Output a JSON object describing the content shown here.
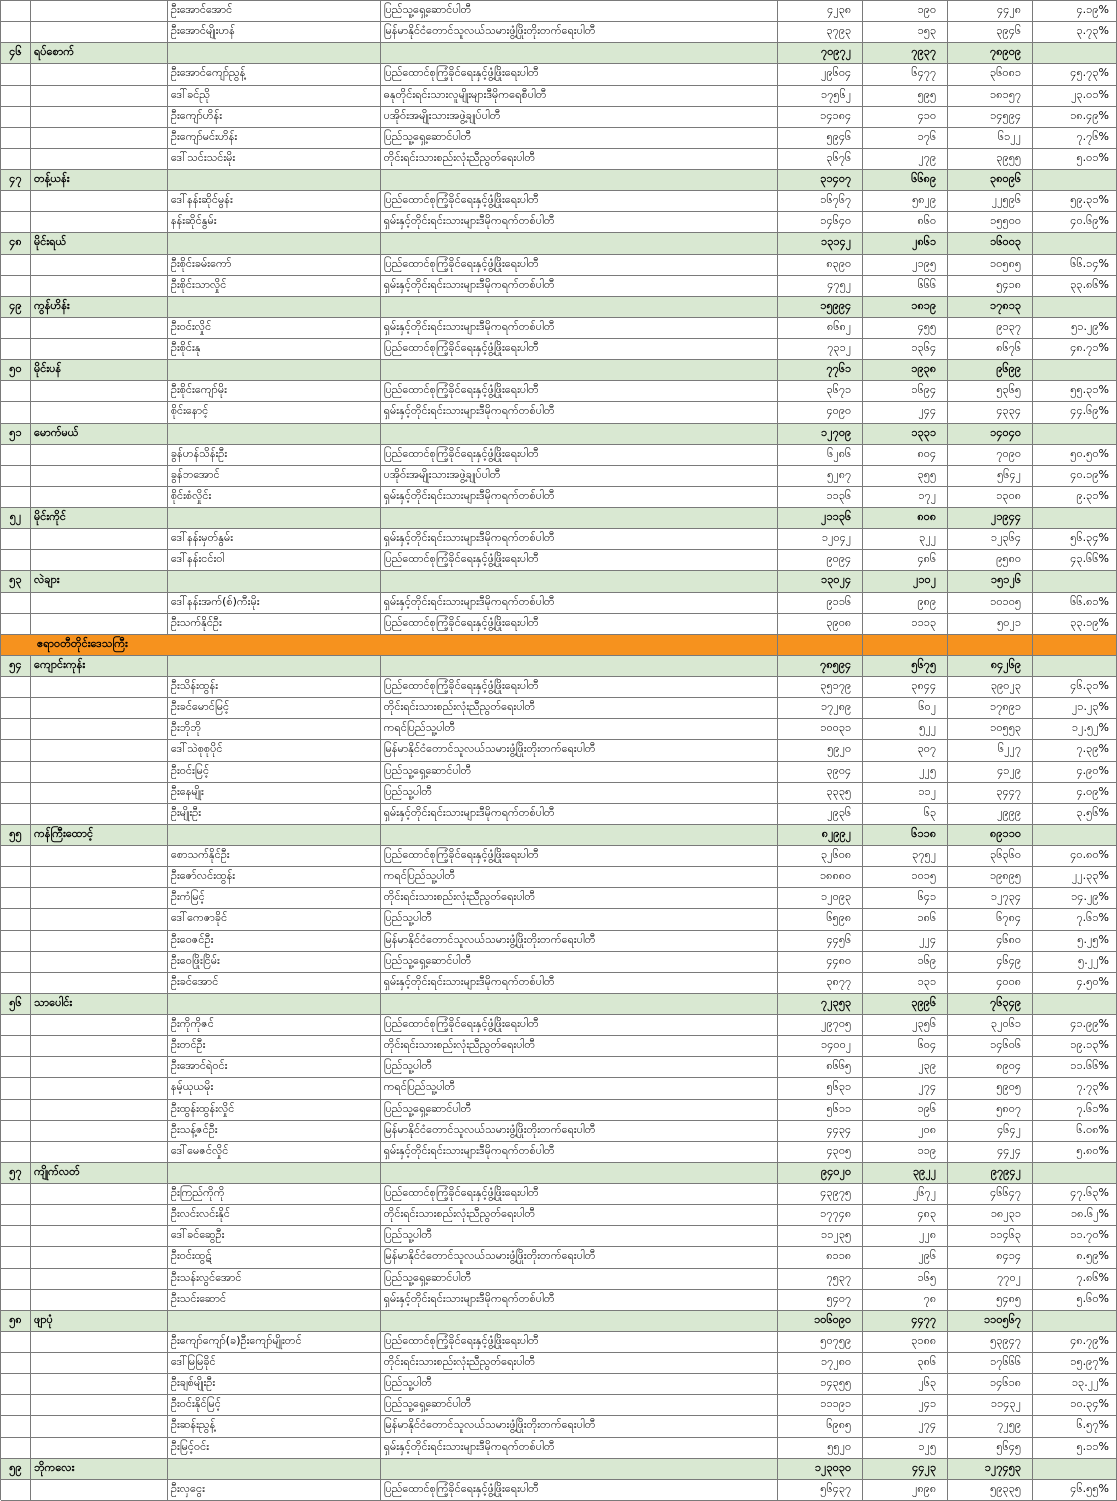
{
  "table": {
    "title": "Myanmar election results table (townships 46-59)",
    "region_header_color": "#f6921e",
    "township_row_color": "#d9e8d2",
    "columns": [
      "no",
      "township",
      "candidate",
      "party",
      "votes_ballot",
      "votes_advance",
      "votes_total",
      "percent"
    ],
    "rows": [
      {
        "type": "candidate",
        "candidate": "ဦးအောင်အောင်",
        "party": "ပြည်သူ့ရှေ့ဆောင်ပါတီ",
        "v1": "၄၂၃၈",
        "v2": "၁၉၀",
        "v3": "၄၄၂၈",
        "pct": "၄.၁၉%"
      },
      {
        "type": "candidate",
        "candidate": "ဦးအောင်မျိုးဟန်",
        "party": "မြန်မာနိုင်ငံတောင်သူလယ်သမားဖွံ့ဖြိုးတိုးတက်ရေးပါတီ",
        "v1": "၃၇၉၃",
        "v2": "၁၅၃",
        "v3": "၃၉၄၆",
        "pct": "၃.၇၃%"
      },
      {
        "type": "township",
        "no": "၄၆",
        "name": "ရပ်စောက်",
        "v1": "၇၀၉၇၂",
        "v2": "၇၉၃၇",
        "v3": "၇၈၉၀၉"
      },
      {
        "type": "candidate",
        "candidate": "ဦးအောင်ကျော်ညွန့်",
        "party": "ပြည်ထောင်စုကြံ့ခိုင်ရေးနှင့်ဖွံ့ဖြိုးရေးပါတီ",
        "v1": "၂၉၆၀၄",
        "v2": "၆၄၇၇",
        "v3": "၃၆၀၈၁",
        "pct": "၄၅.၇၃%"
      },
      {
        "type": "candidate",
        "candidate": "ဒေါ်ခင်ညို",
        "party": "ဓနုတိုင်းရင်းသားလူမျိုးများဒီမိုကရေစီပါတီ",
        "v1": "၁၇၅၆၂",
        "v2": "၅၉၅",
        "v3": "၁၈၁၅၇",
        "pct": "၂၃.၀၁%"
      },
      {
        "type": "candidate",
        "candidate": "ဦးကျော်ဟိန်း",
        "party": "ပအိုဝ်းအမျိုးသားအဖွဲ့ချုပ်ပါတီ",
        "v1": "၁၄၁၈၄",
        "v2": "၄၁၀",
        "v3": "၁၄၅၉၄",
        "pct": "၁၈.၄၉%"
      },
      {
        "type": "candidate",
        "candidate": "ဦးကျော်မင်းဟိန်း",
        "party": "ပြည်သူ့ရှေ့ဆောင်ပါတီ",
        "v1": "၅၉၄၆",
        "v2": "၁၇၆",
        "v3": "၆၁၂၂",
        "pct": "၇.၇၆%"
      },
      {
        "type": "candidate",
        "candidate": "ဒေါ်သင်းသင်းမိုး",
        "party": "တိုင်းရင်းသားစည်းလုံးညီညွတ်ရေးပါတီ",
        "v1": "၃၆၇၆",
        "v2": "၂၇၉",
        "v3": "၃၉၅၅",
        "pct": "၅.၀၁%"
      },
      {
        "type": "township",
        "no": "၄၇",
        "name": "တန့်ယန်း",
        "v1": "၃၁၄၀၇",
        "v2": "၆၆၈၉",
        "v3": "၃၈၀၉၆"
      },
      {
        "type": "candidate",
        "candidate": "ဒေါ်နန်းဆိုင်မွန်း",
        "party": "ပြည်ထောင်စုကြံ့ခိုင်ရေးနှင့်ဖွံ့ဖြိုးရေးပါတီ",
        "v1": "၁၆၇၆၇",
        "v2": "၅၈၂၉",
        "v3": "၂၂၅၉၆",
        "pct": "၅၉.၃၁%"
      },
      {
        "type": "candidate",
        "candidate": "နန်းဆိုင်နွမ်း",
        "party": "ရှမ်းနှင့်တိုင်းရင်းသားများဒီမိုကရက်တစ်ပါတီ",
        "v1": "၁၄၆၄၀",
        "v2": "၈၆၀",
        "v3": "၁၅၅၀၀",
        "pct": "၄၀.၆၉%"
      },
      {
        "type": "township",
        "no": "၄၈",
        "name": "မိုင်းရယ်",
        "v1": "၁၃၁၄၂",
        "v2": "၂၈၆၁",
        "v3": "၁၆၀၀၃"
      },
      {
        "type": "candidate",
        "candidate": "ဦးစိုင်းခမ်းကော်",
        "party": "ပြည်ထောင်စုကြံ့ခိုင်ရေးနှင့်ဖွံ့ဖြိုးရေးပါတီ",
        "v1": "၈၃၉၀",
        "v2": "၂၁၉၅",
        "v3": "၁၀၅၈၅",
        "pct": "၆၆.၁၄%"
      },
      {
        "type": "candidate",
        "candidate": "ဦးစိုင်းသာလှိုင်",
        "party": "ရှမ်းနှင့်တိုင်းရင်းသားများဒီမိုကရက်တစ်ပါတီ",
        "v1": "၄၇၅၂",
        "v2": "၆၆၆",
        "v3": "၅၄၁၈",
        "pct": "၃၃.၈၆%"
      },
      {
        "type": "township",
        "no": "၄၉",
        "name": "ကွန်ဟိန်း",
        "v1": "၁၅၉၉၄",
        "v2": "၁၈၁၉",
        "v3": "၁၇၈၁၃"
      },
      {
        "type": "candidate",
        "candidate": "ဦးဝင်းလှိုင်",
        "party": "ရှမ်းနှင့်တိုင်းရင်းသားများဒီမိုကရက်တစ်ပါတီ",
        "v1": "၈၆၈၂",
        "v2": "၄၅၅",
        "v3": "၉၁၃၇",
        "pct": "၅၁.၂၉%"
      },
      {
        "type": "candidate",
        "candidate": "ဦးစိုင်းနု",
        "party": "ပြည်ထောင်စုကြံ့ခိုင်ရေးနှင့်ဖွံ့ဖြိုးရေးပါတီ",
        "v1": "၇၃၁၂",
        "v2": "၁၃၆၄",
        "v3": "၈၆၇၆",
        "pct": "၄၈.၇၁%"
      },
      {
        "type": "township",
        "no": "၅၀",
        "name": "မိုင်းပန်",
        "v1": "၇၇၆၁",
        "v2": "၁၉၃၈",
        "v3": "၉၆၉၉"
      },
      {
        "type": "candidate",
        "candidate": "ဦးစိုင်းကျော်မိုး",
        "party": "ပြည်ထောင်စုကြံ့ခိုင်ရေးနှင့်ဖွံ့ဖြိုးရေးပါတီ",
        "v1": "၃၆၇၁",
        "v2": "၁၆၉၄",
        "v3": "၅၃၆၅",
        "pct": "၅၅.၃၁%"
      },
      {
        "type": "candidate",
        "candidate": "စိုင်းနောင့်",
        "party": "ရှမ်းနှင့်တိုင်းရင်းသားများဒီမိုကရက်တစ်ပါတီ",
        "v1": "၄၀၉၀",
        "v2": "၂၄၄",
        "v3": "၄၃၃၄",
        "pct": "၄၄.၆၉%"
      },
      {
        "type": "township",
        "no": "၅၁",
        "name": "မောက်မယ်",
        "v1": "၁၂၇၀၉",
        "v2": "၁၃၃၁",
        "v3": "၁၄၀၄၀"
      },
      {
        "type": "candidate",
        "candidate": "ခွန်ဟန်သိန်းဦး",
        "party": "ပြည်ထောင်စုကြံ့ခိုင်ရေးနှင့်ဖွံ့ဖြိုးရေးပါတီ",
        "v1": "၆၂၈၆",
        "v2": "၈၀၄",
        "v3": "၇၀၉၀",
        "pct": "၅၀.၅၀%"
      },
      {
        "type": "candidate",
        "candidate": "ခွန်ဘအောင်",
        "party": "ပအိုဝ်းအမျိုးသားအဖွဲ့ချုပ်ပါတီ",
        "v1": "၅၂၈၇",
        "v2": "၃၅၅",
        "v3": "၅၆၄၂",
        "pct": "၄၀.၁၉%"
      },
      {
        "type": "candidate",
        "candidate": "စိုင်းစံလှိုင်း",
        "party": "ရှမ်းနှင့်တိုင်းရင်းသားများဒီမိုကရက်တစ်ပါတီ",
        "v1": "၁၁၃၆",
        "v2": "၁၇၂",
        "v3": "၁၃၀၈",
        "pct": "၉.၃၁%"
      },
      {
        "type": "township",
        "no": "၅၂",
        "name": "မိုင်းကိုင်",
        "v1": "၂၁၁၃၆",
        "v2": "၈၀၈",
        "v3": "၂၁၉၄၄"
      },
      {
        "type": "candidate",
        "candidate": "ဒေါ်နန်းမှတ်နွမ်း",
        "party": "ရှမ်းနှင့်တိုင်းရင်းသားများဒီမိုကရက်တစ်ပါတီ",
        "v1": "၁၂၀၄၂",
        "v2": "၃၂၂",
        "v3": "၁၂၃၆၄",
        "pct": "၅၆.၃၄%"
      },
      {
        "type": "candidate",
        "candidate": "ဒေါ်နန်းငင်းဝါ",
        "party": "ပြည်ထောင်စုကြံ့ခိုင်ရေးနှင့်ဖွံ့ဖြိုးရေးပါတီ",
        "v1": "၉၀၉၄",
        "v2": "၄၈၆",
        "v3": "၉၅၈၀",
        "pct": "၄၃.၆၆%"
      },
      {
        "type": "township",
        "no": "၅၃",
        "name": "လဲချား",
        "v1": "၁၃၀၂၄",
        "v2": "၂၁၀၂",
        "v3": "၁၅၁၂၆"
      },
      {
        "type": "candidate",
        "candidate": "ဒေါ်နန်းအက်(စ်)ကီးမိုး",
        "party": "ရှမ်းနှင့်တိုင်းရင်းသားများဒီမိုကရက်တစ်ပါတီ",
        "v1": "၉၁၁၆",
        "v2": "၉၈၉",
        "v3": "၁၀၁၀၅",
        "pct": "၆၆.၈၁%"
      },
      {
        "type": "candidate",
        "candidate": "ဦးသက်နိုင်ဦး",
        "party": "ပြည်ထောင်စုကြံ့ခိုင်ရေးနှင့်ဖွံ့ဖြိုးရေးပါတီ",
        "v1": "၃၉၀၈",
        "v2": "၁၁၁၃",
        "v3": "၅၀၂၁",
        "pct": "၃၃.၁၉%"
      },
      {
        "type": "region",
        "name": "ဧရာဝတီတိုင်းဒေသကြီး"
      },
      {
        "type": "township",
        "no": "၅၄",
        "name": "ကျောင်းကုန်း",
        "v1": "၇၈၅၉၄",
        "v2": "၅၆၇၅",
        "v3": "၈၄၂၆၉"
      },
      {
        "type": "candidate",
        "candidate": "ဦးသိန်းထွန်း",
        "party": "ပြည်ထောင်စုကြံ့ခိုင်ရေးနှင့်ဖွံ့ဖြိုးရေးပါတီ",
        "v1": "၃၅၁၇၉",
        "v2": "၃၈၄၄",
        "v3": "၃၉၀၂၃",
        "pct": "၄၆.၃၁%"
      },
      {
        "type": "candidate",
        "candidate": "ဦးခင်မောင်မြင့်",
        "party": "တိုင်းရင်းသားစည်းလုံးညီညွတ်ရေးပါတီ",
        "v1": "၁၇၂၈၉",
        "v2": "၆၀၂",
        "v3": "၁၇၈၉၁",
        "pct": "၂၁.၂၃%"
      },
      {
        "type": "candidate",
        "candidate": "ဦးဘိုဘို",
        "party": "ကရင်ပြည်သူ့ပါတီ",
        "v1": "၁၀၀၃၁",
        "v2": "၅၂၂",
        "v3": "၁၀၅၅၃",
        "pct": "၁၂.၅၂%"
      },
      {
        "type": "candidate",
        "candidate": "ဒေါ်သဲစုစုပိုင်",
        "party": "မြန်မာနိုင်ငံတောင်သူလယ်သမားဖွံ့ဖြိုးတိုးတက်ရေးပါတီ",
        "v1": "၅၉၂၀",
        "v2": "၃၀၇",
        "v3": "၆၂၂၇",
        "pct": "၇.၃၉%"
      },
      {
        "type": "candidate",
        "candidate": "ဦးဝင်းမြင့်",
        "party": "ပြည်သူ့ရှေ့ဆောင်ပါတီ",
        "v1": "၃၉၀၄",
        "v2": "၂၂၅",
        "v3": "၄၁၂၉",
        "pct": "၄.၉၀%"
      },
      {
        "type": "candidate",
        "candidate": "ဦးနေမျိုး",
        "party": "ပြည်သူ့ပါတီ",
        "v1": "၃၃၃၅",
        "v2": "၁၁၂",
        "v3": "၃၄၄၇",
        "pct": "၄.၀၉%"
      },
      {
        "type": "candidate",
        "candidate": "ဦးမျိုးဦး",
        "party": "ရှမ်းနှင့်တိုင်းရင်းသားများဒီမိုကရက်တစ်ပါတီ",
        "v1": "၂၉၃၆",
        "v2": "၆၃",
        "v3": "၂၉၉၉",
        "pct": "၃.၅၆%"
      },
      {
        "type": "township",
        "no": "၅၅",
        "name": "ကန်ကြီးထောင့်",
        "v1": "၈၂၉၉၂",
        "v2": "၆၁၁၈",
        "v3": "၈၉၁၁၀"
      },
      {
        "type": "candidate",
        "candidate": "စောသက်နိုင်ဦး",
        "party": "ပြည်ထောင်စုကြံ့ခိုင်ရေးနှင့်ဖွံ့ဖြိုးရေးပါတီ",
        "v1": "၃၂၆၀၈",
        "v2": "၃၇၅၂",
        "v3": "၃၆၃၆၀",
        "pct": "၄၀.၈၀%"
      },
      {
        "type": "candidate",
        "candidate": "ဦးဇော်လင်းထွန်း",
        "party": "ကရင်ပြည်သူ့ပါတီ",
        "v1": "၁၈၈၈၀",
        "v2": "၁၀၁၅",
        "v3": "၁၉၈၉၅",
        "pct": "၂၂.၃၃%"
      },
      {
        "type": "candidate",
        "candidate": "ဦးကံမြင့်",
        "party": "တိုင်းရင်းသားစည်းလုံးညီညွတ်ရေးပါတီ",
        "v1": "၁၂၀၉၃",
        "v2": "၆၄၁",
        "v3": "၁၂၇၃၄",
        "pct": "၁၄.၂၉%"
      },
      {
        "type": "candidate",
        "candidate": "ဒေါ်ကေဇာခိုင်",
        "party": "ပြည်သူ့ပါတီ",
        "v1": "၆၅၉၈",
        "v2": "၁၈၆",
        "v3": "၆၇၈၄",
        "pct": "၇.၆၁%"
      },
      {
        "type": "candidate",
        "candidate": "ဦးဝေဇင်ဦး",
        "party": "မြန်မာနိုင်ငံတောင်သူလယ်သမားဖွံ့ဖြိုးတိုးတက်ရေးပါတီ",
        "v1": "၄၄၅၆",
        "v2": "၂၂၄",
        "v3": "၄၆၈၀",
        "pct": "၅.၂၅%"
      },
      {
        "type": "candidate",
        "candidate": "ဦးဝေဖြိုးငြိမ်း",
        "party": "ပြည်သူ့ရှေ့ဆောင်ပါတီ",
        "v1": "၄၄၈၀",
        "v2": "၁၆၉",
        "v3": "၄၆၄၉",
        "pct": "၅.၂၂%"
      },
      {
        "type": "candidate",
        "candidate": "ဦးခင်အောင်",
        "party": "ရှမ်းနှင့်တိုင်းရင်းသားများဒီမိုကရက်တစ်ပါတီ",
        "v1": "၃၈၇၇",
        "v2": "၁၃၁",
        "v3": "၄၀၀၈",
        "pct": "၄.၅၀%"
      },
      {
        "type": "township",
        "no": "၅၆",
        "name": "သာပေါင်း",
        "v1": "၇၂၃၅၃",
        "v2": "၃၉၉၆",
        "v3": "၇၆၃၄၉"
      },
      {
        "type": "candidate",
        "candidate": "ဦးကိုကိုဇင်",
        "party": "ပြည်ထောင်စုကြံ့ခိုင်ရေးနှင့်ဖွံ့ဖြိုးရေးပါတီ",
        "v1": "၂၉၇၀၅",
        "v2": "၂၃၅၆",
        "v3": "၃၂၀၆၁",
        "pct": "၄၁.၉၉%"
      },
      {
        "type": "candidate",
        "candidate": "ဦးတင်ဦး",
        "party": "တိုင်းရင်းသားစည်းလုံးညီညွတ်ရေးပါတီ",
        "v1": "၁၄၀၀၂",
        "v2": "၆၀၄",
        "v3": "၁၄၆၀၆",
        "pct": "၁၉.၁၃%"
      },
      {
        "type": "candidate",
        "candidate": "ဦးအောင်ရဲဝင်း",
        "party": "ပြည်သူ့ပါတီ",
        "v1": "၈၆၆၅",
        "v2": "၂၃၉",
        "v3": "၈၉၀၄",
        "pct": "၁၁.၆၆%"
      },
      {
        "type": "candidate",
        "candidate": "နမ့်ယုယမိုး",
        "party": "ကရင်ပြည်သူ့ပါတီ",
        "v1": "၅၆၃၁",
        "v2": "၂၇၄",
        "v3": "၅၉၀၅",
        "pct": "၇.၇၃%"
      },
      {
        "type": "candidate",
        "candidate": "ဦးထွန်းထွန်းလှိုင်",
        "party": "ပြည်သူ့ရှေ့ဆောင်ပါတီ",
        "v1": "၅၆၁၁",
        "v2": "၁၉၆",
        "v3": "၅၈၀၇",
        "pct": "၇.၆၁%"
      },
      {
        "type": "candidate",
        "candidate": "ဦးသန့်ဇင်ဦး",
        "party": "မြန်မာနိုင်ငံတောင်သူလယ်သမားဖွံ့ဖြိုးတိုးတက်ရေးပါတီ",
        "v1": "၄၄၃၄",
        "v2": "၂၀၈",
        "v3": "၄၆၄၂",
        "pct": "၆.၀၈%"
      },
      {
        "type": "candidate",
        "candidate": "ဒေါ်မေဇင်လှိုင်",
        "party": "ရှမ်းနှင့်တိုင်းရင်းသားများဒီမိုကရက်တစ်ပါတီ",
        "v1": "၄၃၀၅",
        "v2": "၁၁၉",
        "v3": "၄၄၂၄",
        "pct": "၅.၈၀%"
      },
      {
        "type": "township",
        "no": "၅၇",
        "name": "ကျိုက်လတ်",
        "v1": "၉၄၀၂၀",
        "v2": "၃၉၂၂",
        "v3": "၉၇၉၄၂"
      },
      {
        "type": "candidate",
        "candidate": "ဦးကြည်ကိုကို",
        "party": "ပြည်ထောင်စုကြံ့ခိုင်ရေးနှင့်ဖွံ့ဖြိုးရေးပါတီ",
        "v1": "၄၃၉၇၅",
        "v2": "၂၆၇၂",
        "v3": "၄၆၆၄၇",
        "pct": "၄၇.၆၃%"
      },
      {
        "type": "candidate",
        "candidate": "ဦးလင်းလင်းနိုင်",
        "party": "တိုင်းရင်းသားစည်းလုံးညီညွတ်ရေးပါတီ",
        "v1": "၁၇၇၄၈",
        "v2": "၄၈၃",
        "v3": "၁၈၂၃၁",
        "pct": "၁၈.၆၂%"
      },
      {
        "type": "candidate",
        "candidate": "ဒေါ်ခင်ဆွေဦး",
        "party": "ပြည်သူ့ပါတီ",
        "v1": "၁၁၂၃၅",
        "v2": "၂၂၈",
        "v3": "၁၁၄၆၃",
        "pct": "၁၁.၇၀%"
      },
      {
        "type": "candidate",
        "candidate": "ဦးဝင်းထွဋ်",
        "party": "မြန်မာနိုင်ငံတောင်သူလယ်သမားဖွံ့ဖြိုးတိုးတက်ရေးပါတီ",
        "v1": "၈၁၁၈",
        "v2": "၂၉၆",
        "v3": "၈၄၁၄",
        "pct": "၈.၅၉%"
      },
      {
        "type": "candidate",
        "candidate": "ဦးသန်းလွင်အောင်",
        "party": "ပြည်သူ့ရှေ့ဆောင်ပါတီ",
        "v1": "၇၅၃၇",
        "v2": "၁၆၅",
        "v3": "၇၇၀၂",
        "pct": "၇.၈၆%"
      },
      {
        "type": "candidate",
        "candidate": "ဦးသင်းဆောင်",
        "party": "ရှမ်းနှင့်တိုင်းရင်းသားများဒီမိုကရက်တစ်ပါတီ",
        "v1": "၅၄၀၇",
        "v2": "၇၈",
        "v3": "၅၄၈၅",
        "pct": "၅.၆၀%"
      },
      {
        "type": "township",
        "no": "၅၈",
        "name": "ဖျာပုံ",
        "v1": "၁၀၆၀၉၀",
        "v2": "၄၄၇၇",
        "v3": "၁၁၀၅၆၇"
      },
      {
        "type": "candidate",
        "candidate": "ဦးကျော်ကျော်(ခ)ဦးကျော်မျိုးတင်",
        "party": "ပြည်ထောင်စုကြံ့ခိုင်ရေးနှင့်ဖွံ့ဖြိုးရေးပါတီ",
        "v1": "၅၀၇၅၉",
        "v2": "၃၁၈၈",
        "v3": "၅၃၉၄၇",
        "pct": "၄၈.၇၉%"
      },
      {
        "type": "candidate",
        "candidate": "ဒေါ်မြမြခိုင်",
        "party": "တိုင်းရင်းသားစည်းလုံးညီညွတ်ရေးပါတီ",
        "v1": "၁၇၂၈၀",
        "v2": "၃၈၆",
        "v3": "၁၇၆၆၆",
        "pct": "၁၅.၉၇%"
      },
      {
        "type": "candidate",
        "candidate": "ဦးချစ်မျိုးဦး",
        "party": "ပြည်သူ့ပါတီ",
        "v1": "၁၄၃၅၅",
        "v2": "၂၆၃",
        "v3": "၁၄၆၁၈",
        "pct": "၁၃.၂၂%"
      },
      {
        "type": "candidate",
        "candidate": "ဦးဝင်းနိုင်မြင့်",
        "party": "ပြည်သူ့ရှေ့ဆောင်ပါတီ",
        "v1": "၁၁၁၉၁",
        "v2": "၂၄၁",
        "v3": "၁၁၄၃၂",
        "pct": "၁၀.၃၄%"
      },
      {
        "type": "candidate",
        "candidate": "ဦးဆန်းညွန့်",
        "party": "မြန်မာနိုင်ငံတောင်သူလယ်သမားဖွံ့ဖြိုးတိုးတက်ရေးပါတီ",
        "v1": "၆၉၈၅",
        "v2": "၂၇၄",
        "v3": "၇၂၅၉",
        "pct": "၆.၅၇%"
      },
      {
        "type": "candidate",
        "candidate": "ဦးမြင့်ဝင်း",
        "party": "ရှမ်းနှင့်တိုင်းရင်းသားများဒီမိုကရက်တစ်ပါတီ",
        "v1": "၅၅၂၀",
        "v2": "၁၂၅",
        "v3": "၅၆၄၅",
        "pct": "၅.၁၁%"
      },
      {
        "type": "township",
        "no": "၅၉",
        "name": "ဘိုကလေး",
        "v1": "၁၂၃၀၃၀",
        "v2": "၄၄၂၃",
        "v3": "၁၂၇၄၅၃"
      },
      {
        "type": "candidate",
        "candidate": "ဦးလှငွေး",
        "party": "ပြည်ထောင်စုကြံ့ခိုင်ရေးနှင့်ဖွံ့ဖြိုးရေးပါတီ",
        "v1": "၅၆၄၃၇",
        "v2": "၂၈၉၈",
        "v3": "၅၉၃၃၅",
        "pct": "၄၆.၅၅%"
      }
    ]
  }
}
